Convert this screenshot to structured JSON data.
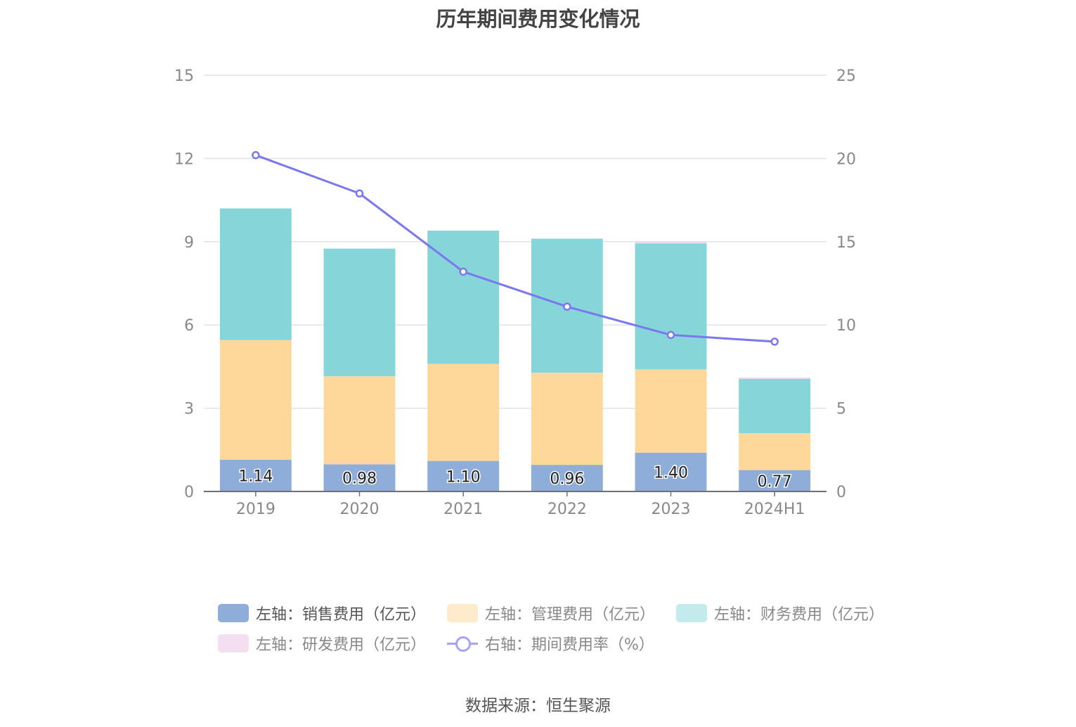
{
  "title": "历年期间费用变化情况",
  "source": "数据来源：恒生聚源",
  "chart_data": {
    "type": "bar",
    "stacked": true,
    "categories": [
      "2019",
      "2020",
      "2021",
      "2022",
      "2023",
      "2024H1"
    ],
    "series": [
      {
        "name": "左轴：销售费用（亿元）",
        "axis": "left",
        "color": "#8eadd9",
        "values": [
          1.14,
          0.98,
          1.1,
          0.96,
          1.4,
          0.77
        ],
        "show_labels": true
      },
      {
        "name": "左轴：管理费用（亿元）",
        "axis": "left",
        "color": "#fed89b",
        "values": [
          4.32,
          3.17,
          3.5,
          3.32,
          3.0,
          1.33
        ]
      },
      {
        "name": "左轴：财务费用（亿元）",
        "axis": "left",
        "color": "#86d5d9",
        "values": [
          4.74,
          4.6,
          4.8,
          4.83,
          4.54,
          1.96
        ]
      },
      {
        "name": "左轴：研发费用（亿元）",
        "axis": "left",
        "color": "#f2d8ec",
        "values": [
          0.0,
          0.0,
          0.0,
          0.0,
          0.05,
          0.05
        ]
      },
      {
        "name": "右轴：期间费用率（%）",
        "axis": "right",
        "type": "line",
        "color": "#7b78ee",
        "values": [
          20.2,
          17.9,
          13.2,
          11.1,
          9.4,
          9.0
        ]
      }
    ],
    "y_left": {
      "min": 0,
      "max": 15,
      "ticks": [
        "0",
        "3",
        "6",
        "9",
        "12",
        "15"
      ]
    },
    "y_right": {
      "min": 0,
      "max": 25,
      "ticks": [
        "0",
        "5",
        "10",
        "15",
        "20",
        "25"
      ]
    },
    "grid": true,
    "legend_position": "bottom"
  }
}
